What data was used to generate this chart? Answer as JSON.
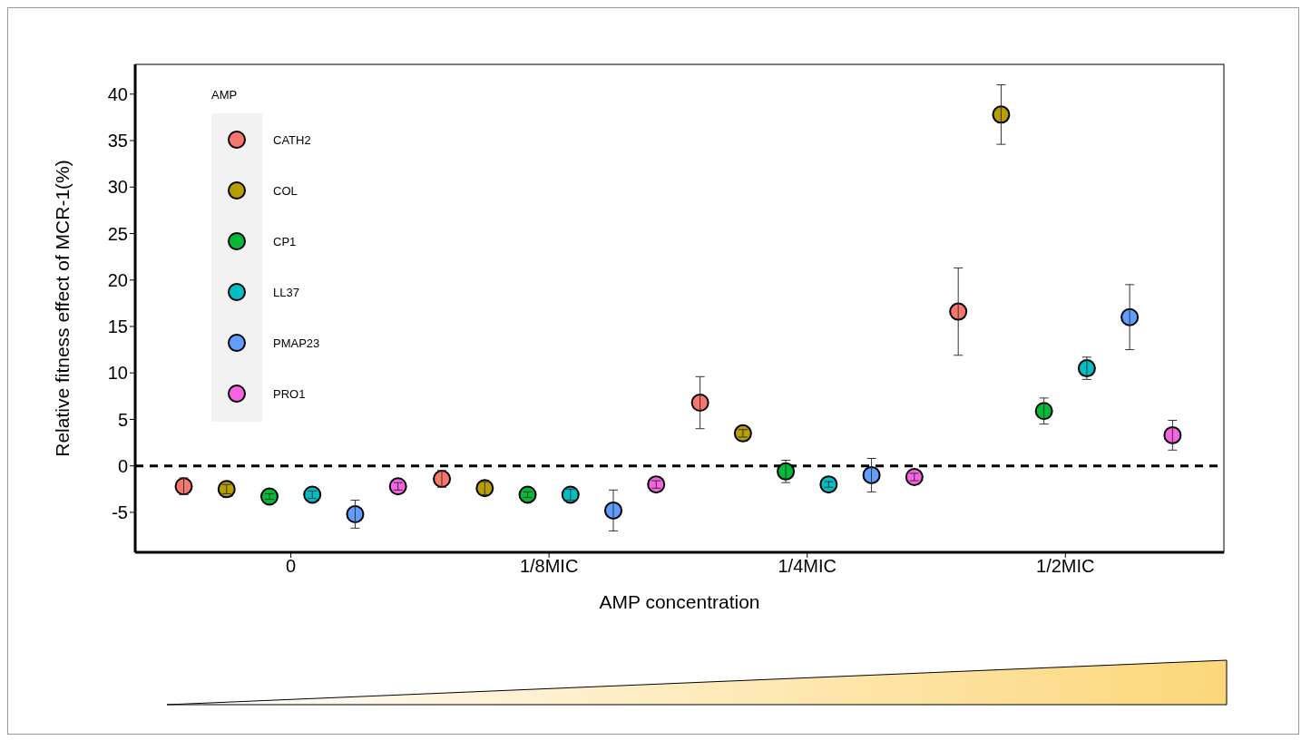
{
  "chart_data": {
    "type": "scatter",
    "xlabel": "AMP concentration",
    "ylabel": "Relative fitness effect of MCR-1(%)",
    "legend_title": "AMP",
    "legend": "top left",
    "marker": "circle",
    "categories": [
      "0",
      "1/8MIC",
      "1/4MIC",
      "1/2MIC"
    ],
    "ylim": [
      -9.3,
      43.2
    ],
    "yticks": [
      -5,
      0,
      5,
      10,
      15,
      20,
      25,
      30,
      35,
      40
    ],
    "ref_lines": [
      {
        "axis": "y",
        "value": 0,
        "line_style": "dashed",
        "color": "#000000"
      }
    ],
    "series": [
      {
        "name": "CATH2",
        "color": "#f8766d",
        "values": [
          -2.2,
          -1.4,
          6.8,
          16.6
        ],
        "errors": [
          0.9,
          0.9,
          2.8,
          4.7
        ]
      },
      {
        "name": "COL",
        "color": "#b79f00",
        "values": [
          -2.5,
          -2.4,
          3.5,
          37.8
        ],
        "errors": [
          0.5,
          0.7,
          0.4,
          3.2
        ]
      },
      {
        "name": "CP1",
        "color": "#00ba38",
        "values": [
          -3.3,
          -3.1,
          -0.6,
          5.9
        ],
        "errors": [
          0.3,
          0.3,
          1.2,
          1.4
        ]
      },
      {
        "name": "LL37",
        "color": "#00bfc4",
        "values": [
          -3.1,
          -3.1,
          -2.0,
          10.5
        ],
        "errors": [
          0.4,
          0.6,
          0.3,
          1.2
        ]
      },
      {
        "name": "PMAP23",
        "color": "#619cff",
        "values": [
          -5.2,
          -4.8,
          -1.0,
          16.0
        ],
        "errors": [
          1.5,
          2.2,
          1.8,
          3.5
        ]
      },
      {
        "name": "PRO1",
        "color": "#f564e3",
        "values": [
          -2.2,
          -2.0,
          -1.2,
          3.3
        ],
        "errors": [
          0.4,
          0.4,
          0.4,
          1.6
        ]
      }
    ]
  }
}
